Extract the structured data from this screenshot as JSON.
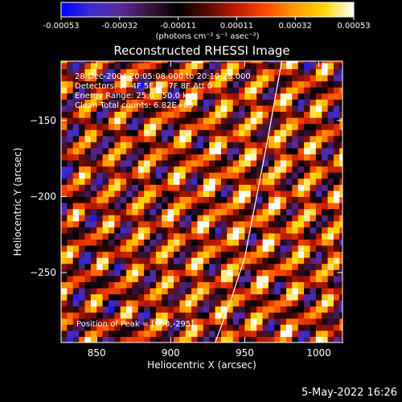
{
  "footer": {
    "date": "5-May-2022 16:26"
  },
  "colorbar": {
    "ticks": [
      "-0.00053",
      "-0.00032",
      "-0.00011",
      "0.00011",
      "0.00032",
      "0.00053"
    ],
    "unit_label": "(photons cm⁻² s⁻¹ asec⁻²)",
    "colors": [
      "#0000ff",
      "#3b2bd0",
      "#5a2a9a",
      "#3a143a",
      "#000000",
      "#5a0a00",
      "#c01a00",
      "#ff4a00",
      "#ff9a00",
      "#ffd800",
      "#ffffff"
    ]
  },
  "chart_data": {
    "type": "heatmap",
    "title": "Reconstructed RHESSI Image",
    "xlabel": "Heliocentric X (arcsec)",
    "ylabel": "Heliocentric Y (arcsec)",
    "xlim": [
      826,
      1016
    ],
    "ylim": [
      -296,
      -111
    ],
    "xticks": [
      850,
      900,
      950,
      1000
    ],
    "yticks": [
      -150,
      -200,
      -250
    ],
    "value_range": [
      -0.00053,
      0.00053
    ],
    "annotations": [
      "28-Dec-2004 20:05:08.000 to 20:10:28.000",
      "Detectors: 3F 4F 5F 6F 7F 8F Att 0",
      "Energy Range: 25.0 - 50.0 keV",
      "Clean    Total counts: 6.82E+03"
    ],
    "peak_label": "Position of Peak = [950,-295]",
    "peak": [
      950,
      -295
    ],
    "limb": {
      "x": [
        930,
        940,
        950,
        955,
        960,
        965,
        970,
        975
      ],
      "y": [
        -296,
        -270,
        -240,
        -215,
        -190,
        -165,
        -138,
        -111
      ]
    },
    "pattern": {
      "description_hidden": false,
      "stripe_slope": 0.7,
      "wavelength_arcsec": 22,
      "cell_arcsec": 4
    }
  }
}
